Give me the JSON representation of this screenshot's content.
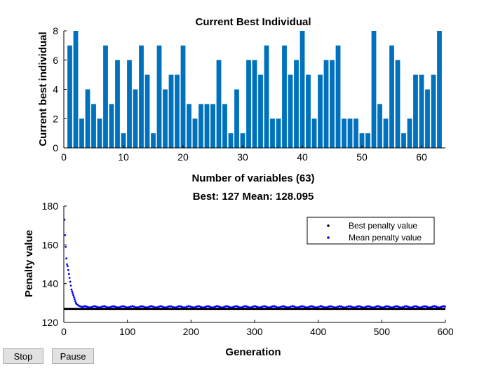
{
  "chart_data": [
    {
      "type": "bar",
      "title": "Current Best Individual",
      "xlabel": "Number of variables (63)",
      "ylabel": "Current best individual",
      "xlim": [
        0,
        64
      ],
      "ylim": [
        0,
        8
      ],
      "xticks": [
        0,
        10,
        20,
        30,
        40,
        50,
        60
      ],
      "yticks": [
        0,
        2,
        4,
        6,
        8
      ],
      "color": "#0072bd",
      "categories": [
        1,
        2,
        3,
        4,
        5,
        6,
        7,
        8,
        9,
        10,
        11,
        12,
        13,
        14,
        15,
        16,
        17,
        18,
        19,
        20,
        21,
        22,
        23,
        24,
        25,
        26,
        27,
        28,
        29,
        30,
        31,
        32,
        33,
        34,
        35,
        36,
        37,
        38,
        39,
        40,
        41,
        42,
        43,
        44,
        45,
        46,
        47,
        48,
        49,
        50,
        51,
        52,
        53,
        54,
        55,
        56,
        57,
        58,
        59,
        60,
        61,
        62,
        63
      ],
      "values": [
        7,
        8,
        2,
        4,
        3,
        2,
        7,
        3,
        6,
        1,
        6,
        4,
        7,
        5,
        1,
        7,
        4,
        5,
        5,
        7,
        3,
        2,
        3,
        3,
        3,
        6,
        3,
        1,
        4,
        1,
        6,
        6,
        5,
        7,
        2,
        2,
        7,
        5,
        6,
        8,
        5,
        2,
        5,
        6,
        6,
        7,
        2,
        2,
        2,
        1,
        1,
        8,
        3,
        2,
        7,
        6,
        1,
        2,
        5,
        5,
        4,
        5,
        8
      ]
    },
    {
      "type": "scatter",
      "title": "Best: 127 Mean: 128.095",
      "xlabel": "Generation",
      "ylabel": "Penalty value",
      "xlim": [
        0,
        600
      ],
      "ylim": [
        120,
        180
      ],
      "xticks": [
        0,
        100,
        200,
        300,
        400,
        500,
        600
      ],
      "yticks": [
        120,
        140,
        160,
        180
      ],
      "legend_position": "top-right",
      "series": [
        {
          "name": "Best penalty value",
          "color": "#000000",
          "x_range": [
            0,
            600
          ],
          "values": [
            127
          ]
        },
        {
          "name": "Mean penalty value",
          "color": "#0000ff",
          "x": [
            1,
            2,
            3,
            4,
            5,
            6,
            7,
            8,
            9,
            10,
            11,
            12,
            13,
            14,
            15,
            16,
            17,
            18,
            19,
            20,
            22,
            24,
            26,
            28,
            30
          ],
          "values": [
            173,
            165,
            159,
            153,
            150,
            149,
            147,
            145,
            143,
            141,
            139,
            137,
            136,
            135,
            134,
            133,
            132,
            131,
            130,
            129.5,
            129,
            128.5,
            128.3,
            128.1,
            128
          ],
          "tail_value": 128,
          "tail_to": 600
        }
      ]
    }
  ],
  "controls": {
    "stop_label": "Stop",
    "pause_label": "Pause"
  }
}
